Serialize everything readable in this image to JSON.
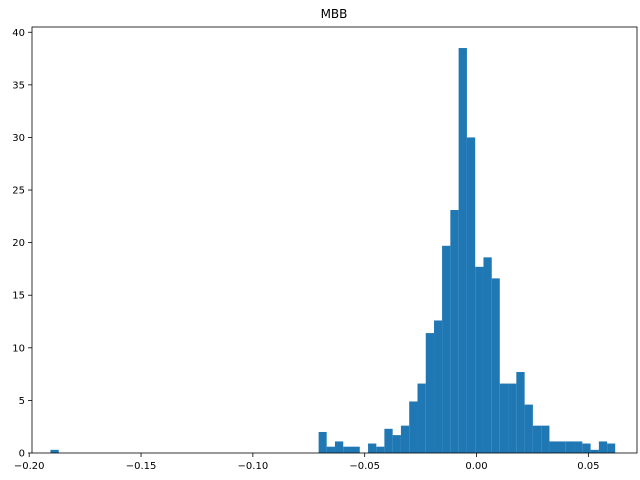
{
  "chart_data": {
    "type": "bar",
    "title": "MBB",
    "xlabel": "",
    "ylabel": "",
    "xlim": [
      -0.2,
      0.072
    ],
    "ylim": [
      0,
      40.5
    ],
    "xticks": [
      -0.2,
      -0.15,
      -0.1,
      -0.05,
      0.0,
      0.05
    ],
    "xtick_labels": [
      "−0.20",
      "−0.15",
      "−0.10",
      "−0.05",
      "0.00",
      "0.05"
    ],
    "yticks": [
      0,
      5,
      10,
      15,
      20,
      25,
      30,
      35,
      40
    ],
    "ytick_labels": [
      "0",
      "5",
      "10",
      "15",
      "20",
      "25",
      "30",
      "35",
      "40"
    ],
    "bar_color": "#1f77b4",
    "grid": false,
    "bins": [
      {
        "x0": -0.1905,
        "x1": -0.1868,
        "count": 0.3
      },
      {
        "x0": -0.0706,
        "x1": -0.067,
        "count": 2.0
      },
      {
        "x0": -0.067,
        "x1": -0.0633,
        "count": 0.6
      },
      {
        "x0": -0.0633,
        "x1": -0.0596,
        "count": 1.1
      },
      {
        "x0": -0.0596,
        "x1": -0.0559,
        "count": 0.6
      },
      {
        "x0": -0.0559,
        "x1": -0.0522,
        "count": 0.6
      },
      {
        "x0": -0.0485,
        "x1": -0.0448,
        "count": 0.9
      },
      {
        "x0": -0.0448,
        "x1": -0.0412,
        "count": 0.6
      },
      {
        "x0": -0.0412,
        "x1": -0.0375,
        "count": 2.3
      },
      {
        "x0": -0.0375,
        "x1": -0.0338,
        "count": 1.7
      },
      {
        "x0": -0.0338,
        "x1": -0.0301,
        "count": 2.6
      },
      {
        "x0": -0.0301,
        "x1": -0.0264,
        "count": 4.9
      },
      {
        "x0": -0.0264,
        "x1": -0.0227,
        "count": 6.6
      },
      {
        "x0": -0.0227,
        "x1": -0.019,
        "count": 11.4
      },
      {
        "x0": -0.019,
        "x1": -0.0154,
        "count": 12.6
      },
      {
        "x0": -0.0154,
        "x1": -0.0117,
        "count": 19.7
      },
      {
        "x0": -0.0117,
        "x1": -0.008,
        "count": 23.1
      },
      {
        "x0": -0.008,
        "x1": -0.0043,
        "count": 38.5
      },
      {
        "x0": -0.0043,
        "x1": -0.0006,
        "count": 30.0
      },
      {
        "x0": -0.0006,
        "x1": 0.0031,
        "count": 17.7
      },
      {
        "x0": 0.0031,
        "x1": 0.0068,
        "count": 18.6
      },
      {
        "x0": 0.0068,
        "x1": 0.0104,
        "count": 16.6
      },
      {
        "x0": 0.0104,
        "x1": 0.0141,
        "count": 6.6
      },
      {
        "x0": 0.0141,
        "x1": 0.0178,
        "count": 6.6
      },
      {
        "x0": 0.0178,
        "x1": 0.0215,
        "count": 7.7
      },
      {
        "x0": 0.0215,
        "x1": 0.0252,
        "count": 4.6
      },
      {
        "x0": 0.0252,
        "x1": 0.0289,
        "count": 2.6
      },
      {
        "x0": 0.0289,
        "x1": 0.0326,
        "count": 2.6
      },
      {
        "x0": 0.0326,
        "x1": 0.0362,
        "count": 1.1
      },
      {
        "x0": 0.0362,
        "x1": 0.0399,
        "count": 1.1
      },
      {
        "x0": 0.0399,
        "x1": 0.0436,
        "count": 1.1
      },
      {
        "x0": 0.0436,
        "x1": 0.0473,
        "count": 1.1
      },
      {
        "x0": 0.0473,
        "x1": 0.051,
        "count": 0.9
      },
      {
        "x0": 0.051,
        "x1": 0.0547,
        "count": 0.3
      },
      {
        "x0": 0.0547,
        "x1": 0.0584,
        "count": 1.1
      },
      {
        "x0": 0.0584,
        "x1": 0.062,
        "count": 0.9
      }
    ]
  }
}
